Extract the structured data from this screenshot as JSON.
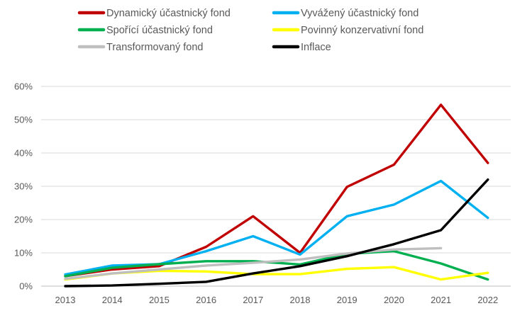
{
  "chart_data": {
    "type": "line",
    "title": "",
    "xlabel": "",
    "ylabel": "",
    "categories": [
      "2013",
      "2014",
      "2015",
      "2016",
      "2017",
      "2018",
      "2019",
      "2020",
      "2021",
      "2022"
    ],
    "y_ticks": [
      "0%",
      "10%",
      "20%",
      "30%",
      "40%",
      "50%",
      "60%"
    ],
    "ylim": [
      0,
      60
    ],
    "grid": true,
    "legend_position": "top",
    "series": [
      {
        "name": "Dynamický účastnický fond",
        "color": "#c00000",
        "values": [
          3.0,
          5.0,
          6.0,
          11.8,
          21.0,
          10.0,
          29.8,
          36.5,
          54.5,
          37.0
        ]
      },
      {
        "name": "Vyvážený účastnický fond",
        "color": "#00b0f0",
        "values": [
          3.5,
          6.2,
          6.6,
          10.5,
          15.0,
          9.5,
          21.0,
          24.5,
          31.6,
          20.5
        ]
      },
      {
        "name": "Spořící účastnický fond",
        "color": "#00b050",
        "values": [
          3.0,
          5.5,
          6.6,
          7.5,
          7.5,
          6.5,
          9.7,
          10.5,
          6.8,
          2.0
        ]
      },
      {
        "name": "Povinný konzervativní fond",
        "color": "#ffff00",
        "values": [
          2.0,
          3.8,
          4.6,
          4.4,
          3.6,
          3.6,
          5.2,
          5.7,
          2.0,
          4.0
        ]
      },
      {
        "name": "Transformovaný fond",
        "color": "#bfbfbf",
        "values": [
          2.2,
          3.8,
          5.0,
          6.2,
          7.0,
          8.0,
          9.8,
          11.0,
          11.4,
          null
        ]
      },
      {
        "name": "Inflace",
        "color": "#000000",
        "values": [
          0.0,
          0.2,
          0.7,
          1.3,
          3.8,
          6.0,
          9.0,
          12.6,
          16.8,
          32.0
        ]
      }
    ]
  }
}
